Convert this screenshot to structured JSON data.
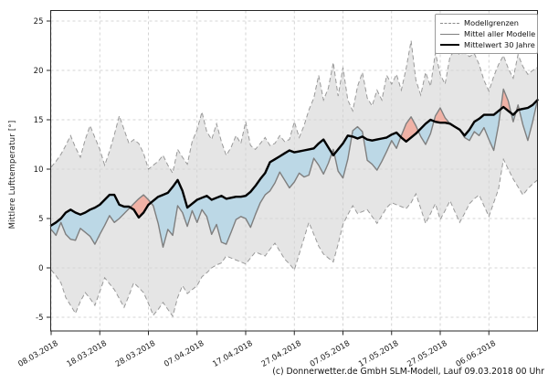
{
  "chart": {
    "ylabel": "Mittlere Lufttemperatur [°]",
    "footer": "(c) Donnerwetter.de GmbH SLM-Modell, Lauf 09.03.2018 00 Uhr",
    "legend": {
      "items": [
        {
          "label": "Modellgrenzen",
          "style": "dashed-gray-line"
        },
        {
          "label": "Mittel aller Modelle",
          "style": "solid-gray-line"
        },
        {
          "label": "Mittelwert 30 Jahre",
          "style": "thick-black-line"
        }
      ]
    },
    "colors": {
      "band_fill": "#d4d4d4",
      "band_edge": "#999999",
      "model_mean_line": "#7f7f7f",
      "mean30_line": "#000000",
      "below_normal_fill": "#bcd8e6",
      "above_normal_fill": "#f0b2a6",
      "grid": "#c9c9c9",
      "spine": "#262626",
      "tick_text": "#1a1a1a"
    }
  },
  "chart_data": {
    "type": "line",
    "title": "",
    "xlabel": "",
    "ylabel": "Mittlere Lufttemperatur [°]",
    "x_unit": "days since 08.03.2018",
    "x_start_date": "08.03.2018",
    "x_end_date": "16.06.2018",
    "x_tick_days": [
      0,
      10,
      20,
      30,
      40,
      50,
      60,
      70,
      80,
      90
    ],
    "x_tick_labels": [
      "08.03.2018",
      "18.03.2018",
      "28.03.2018",
      "07.04.2018",
      "17.04.2018",
      "27.04.2018",
      "07.05.2018",
      "17.05.2018",
      "27.05.2018",
      "06.06.2018"
    ],
    "yticks": [
      -5,
      0,
      5,
      10,
      15,
      20,
      25
    ],
    "ylim": [
      -6.4,
      26.1
    ],
    "grid": true,
    "legend_position": "upper right",
    "force_blue_above_days": [
      61.5,
      64.8
    ],
    "series": [
      {
        "name": "Modellgrenzen (obere Grenze)",
        "values": [
          10.2,
          10.8,
          11.5,
          12.4,
          13.4,
          12.2,
          11.2,
          13.0,
          14.4,
          13.2,
          12.0,
          10.4,
          11.8,
          13.5,
          15.4,
          14.0,
          12.6,
          13.0,
          12.6,
          11.6,
          10.0,
          10.4,
          10.8,
          11.4,
          10.4,
          9.6,
          12.0,
          11.2,
          10.5,
          12.8,
          14.0,
          15.8,
          13.8,
          13.0,
          14.6,
          12.8,
          11.4,
          12.2,
          13.4,
          12.6,
          14.8,
          12.4,
          12.0,
          12.6,
          13.2,
          12.4,
          12.6,
          13.4,
          12.8,
          13.0,
          14.8,
          13.2,
          14.4,
          16.0,
          17.2,
          19.5,
          17.0,
          18.2,
          20.8,
          17.4,
          20.3,
          17.0,
          15.9,
          18.4,
          19.8,
          17.2,
          16.4,
          18.0,
          17.0,
          19.5,
          18.6,
          19.6,
          18.0,
          20.2,
          23.0,
          19.0,
          17.5,
          19.8,
          18.4,
          21.8,
          19.6,
          18.6,
          21.4,
          22.0,
          21.6,
          21.8,
          21.4,
          21.7,
          20.6,
          19.0,
          17.9,
          19.4,
          20.6,
          21.5,
          20.2,
          19.2,
          21.6,
          20.4,
          19.6,
          20.0,
          20.3
        ]
      },
      {
        "name": "Modellgrenzen (untere Grenze)",
        "values": [
          -0.2,
          -0.8,
          -1.5,
          -3.0,
          -3.8,
          -4.6,
          -3.4,
          -2.5,
          -3.1,
          -3.8,
          -2.4,
          -1.0,
          -1.6,
          -2.2,
          -3.1,
          -4.0,
          -2.8,
          -1.5,
          -2.0,
          -2.5,
          -3.6,
          -4.8,
          -4.2,
          -3.5,
          -4.2,
          -4.9,
          -3.0,
          -1.8,
          -2.6,
          -2.2,
          -1.8,
          -0.9,
          -0.5,
          0.0,
          0.3,
          0.5,
          1.2,
          1.0,
          0.8,
          0.6,
          0.4,
          1.0,
          1.6,
          1.4,
          1.2,
          1.9,
          2.5,
          1.7,
          0.9,
          0.4,
          -0.2,
          1.4,
          3.0,
          4.6,
          3.4,
          2.2,
          1.4,
          1.0,
          0.6,
          2.4,
          4.4,
          5.4,
          6.3,
          5.5,
          5.7,
          5.9,
          5.2,
          4.5,
          5.3,
          6.1,
          6.6,
          6.4,
          6.2,
          6.0,
          6.6,
          7.5,
          6.0,
          4.5,
          5.5,
          6.5,
          4.9,
          5.8,
          6.8,
          5.7,
          4.6,
          5.5,
          6.5,
          7.0,
          7.4,
          6.3,
          5.2,
          6.6,
          8.0,
          11.0,
          10.0,
          9.0,
          8.2,
          7.4,
          8.0,
          8.5,
          8.9
        ]
      },
      {
        "name": "Mittel aller Modelle",
        "values": [
          3.9,
          3.3,
          4.6,
          3.4,
          2.9,
          2.8,
          4.0,
          3.6,
          3.2,
          2.4,
          3.4,
          4.3,
          5.3,
          4.6,
          5.0,
          5.5,
          6.0,
          6.5,
          7.0,
          7.4,
          6.9,
          6.3,
          4.5,
          2.1,
          3.9,
          3.3,
          6.3,
          5.6,
          4.2,
          5.8,
          4.6,
          5.9,
          5.2,
          3.4,
          4.4,
          2.6,
          2.4,
          3.6,
          4.9,
          5.2,
          5.0,
          4.1,
          5.4,
          6.6,
          7.4,
          7.8,
          8.6,
          9.7,
          8.9,
          8.1,
          8.7,
          9.6,
          9.2,
          9.4,
          11.1,
          10.4,
          9.5,
          10.6,
          12.0,
          9.8,
          9.1,
          11.0,
          13.9,
          14.3,
          13.8,
          10.9,
          10.5,
          9.9,
          10.8,
          11.8,
          12.9,
          12.1,
          13.4,
          14.6,
          15.3,
          14.4,
          13.3,
          12.5,
          13.6,
          15.4,
          16.2,
          15.2,
          14.6,
          14.3,
          14.0,
          13.2,
          12.9,
          13.8,
          13.4,
          14.2,
          13.0,
          11.9,
          14.5,
          18.1,
          16.9,
          14.8,
          16.5,
          14.5,
          12.9,
          14.8,
          17.0
        ]
      },
      {
        "name": "Mittelwert 30 Jahre",
        "values": [
          4.3,
          4.6,
          5.0,
          5.6,
          5.9,
          5.6,
          5.4,
          5.6,
          5.9,
          6.1,
          6.4,
          6.9,
          7.4,
          7.4,
          6.4,
          6.2,
          6.2,
          5.9,
          5.1,
          5.6,
          6.4,
          6.8,
          7.2,
          7.4,
          7.6,
          8.2,
          8.9,
          7.8,
          6.1,
          6.5,
          6.9,
          7.1,
          7.3,
          6.9,
          7.1,
          7.3,
          7.0,
          7.1,
          7.2,
          7.2,
          7.3,
          7.7,
          8.3,
          9.0,
          9.6,
          10.7,
          11.0,
          11.3,
          11.6,
          11.9,
          11.7,
          11.8,
          11.9,
          12.0,
          12.1,
          12.6,
          13.0,
          12.2,
          11.4,
          12.0,
          12.6,
          13.4,
          13.3,
          13.1,
          13.3,
          13.0,
          12.9,
          13.0,
          13.1,
          13.2,
          13.5,
          13.7,
          13.2,
          12.8,
          13.2,
          13.6,
          14.1,
          14.6,
          15.0,
          14.8,
          14.7,
          14.7,
          14.6,
          14.3,
          14.0,
          13.4,
          14.0,
          14.8,
          15.1,
          15.5,
          15.5,
          15.5,
          15.9,
          16.3,
          15.9,
          15.5,
          16.0,
          16.1,
          16.2,
          16.5,
          17.0
        ]
      }
    ]
  }
}
